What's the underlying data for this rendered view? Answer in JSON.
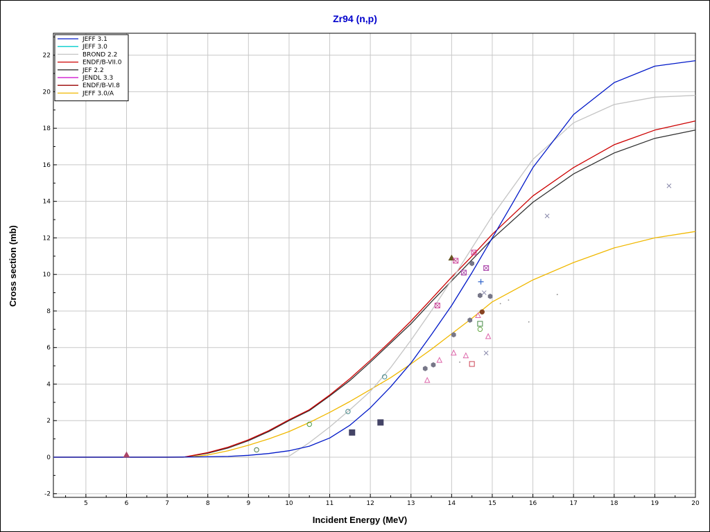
{
  "chart_data": {
    "type": "line",
    "title": "Zr94 (n,p)",
    "xlabel": "Incident Energy (MeV)",
    "ylabel": "Cross section (mb)",
    "xlim": [
      4.2,
      20
    ],
    "ylim": [
      -2.2,
      23.2
    ],
    "xticks": [
      5,
      6,
      7,
      8,
      9,
      10,
      11,
      12,
      13,
      14,
      15,
      16,
      17,
      18,
      19,
      20
    ],
    "yticks": [
      -2,
      0,
      2,
      4,
      6,
      8,
      10,
      12,
      14,
      16,
      18,
      20,
      22
    ],
    "grid": true,
    "legend_position": "top-left",
    "series": [
      {
        "name": "JEFF 3.1",
        "color": "#0018c8",
        "x": [
          4.2,
          7.0,
          8.0,
          8.5,
          9.0,
          9.5,
          10.0,
          10.5,
          11.0,
          11.5,
          12.0,
          12.5,
          13.0,
          13.5,
          14.0,
          14.5,
          15.0,
          15.5,
          16.0,
          17.0,
          18.0,
          19.0,
          20.0
        ],
        "y": [
          0,
          0,
          0.02,
          0.04,
          0.1,
          0.2,
          0.35,
          0.6,
          1.05,
          1.75,
          2.7,
          3.85,
          5.15,
          6.7,
          8.3,
          10.1,
          12.0,
          13.9,
          15.85,
          18.75,
          20.5,
          21.4,
          21.7
        ]
      },
      {
        "name": "JEFF 3.0",
        "color": "#00cccc",
        "x": [],
        "y": []
      },
      {
        "name": "BROND 2.2",
        "color": "#c4c4c4",
        "x": [
          4.2,
          9.5,
          10.0,
          10.5,
          11.0,
          11.5,
          12.0,
          12.5,
          13.0,
          13.5,
          14.0,
          14.5,
          15.0,
          16.0,
          17.0,
          18.0,
          19.0,
          20.0
        ],
        "y": [
          0,
          0,
          0.05,
          0.8,
          1.65,
          2.6,
          3.6,
          4.9,
          6.4,
          8.0,
          9.7,
          11.45,
          13.2,
          16.3,
          18.3,
          19.3,
          19.7,
          19.8
        ]
      },
      {
        "name": "ENDF/B-VII.0",
        "color": "#cc0000",
        "x": [
          4.2,
          7.4,
          8.0,
          8.5,
          9.0,
          9.5,
          10.0,
          10.5,
          11.0,
          11.5,
          12.0,
          12.5,
          13.0,
          13.5,
          14.0,
          14.5,
          15.0,
          16.0,
          17.0,
          18.0,
          19.0,
          20.0
        ],
        "y": [
          0,
          0,
          0.25,
          0.55,
          0.95,
          1.45,
          2.05,
          2.6,
          3.4,
          4.3,
          5.3,
          6.35,
          7.45,
          8.65,
          9.85,
          11.0,
          12.2,
          14.3,
          15.85,
          17.1,
          17.9,
          18.4
        ]
      },
      {
        "name": "JEF 2.2",
        "color": "#303030",
        "x": [
          4.2,
          7.4,
          8.0,
          8.5,
          9.0,
          9.5,
          10.0,
          10.5,
          11.0,
          11.5,
          12.0,
          12.5,
          13.0,
          13.5,
          14.0,
          14.5,
          15.0,
          16.0,
          17.0,
          18.0,
          19.0,
          20.0
        ],
        "y": [
          0,
          0,
          0.22,
          0.5,
          0.9,
          1.4,
          2.0,
          2.55,
          3.35,
          4.2,
          5.2,
          6.25,
          7.3,
          8.5,
          9.65,
          10.8,
          11.95,
          13.95,
          15.5,
          16.65,
          17.45,
          17.9
        ]
      },
      {
        "name": "JENDL 3.3",
        "color": "#cc00cc",
        "x": [],
        "y": []
      },
      {
        "name": "ENDF/B-VI.8",
        "color": "#990000",
        "x": [],
        "y": []
      },
      {
        "name": "JEFF 3.0/A",
        "color": "#f0b800",
        "x": [
          4.2,
          7.5,
          8.0,
          8.5,
          9.0,
          9.5,
          10.0,
          10.5,
          11.0,
          11.5,
          12.0,
          12.5,
          13.0,
          13.5,
          14.0,
          14.5,
          15.0,
          16.0,
          17.0,
          18.0,
          19.0,
          20.0
        ],
        "y": [
          0,
          0,
          0.12,
          0.35,
          0.65,
          1.0,
          1.4,
          1.9,
          2.45,
          3.05,
          3.7,
          4.35,
          5.1,
          5.9,
          6.75,
          7.6,
          8.5,
          9.7,
          10.65,
          11.45,
          12.0,
          12.35
        ]
      }
    ],
    "experimental_points": [
      {
        "marker": "triangle-filled",
        "color": "#aa4466",
        "x": 6.0,
        "y": 0.12
      },
      {
        "marker": "circle-open",
        "color": "#447744",
        "x": 9.2,
        "y": 0.4
      },
      {
        "marker": "circle-open",
        "color": "#449944",
        "x": 10.5,
        "y": 1.8
      },
      {
        "marker": "circle-open",
        "color": "#448888",
        "x": 11.45,
        "y": 2.5
      },
      {
        "marker": "circle-open",
        "color": "#448888",
        "x": 12.35,
        "y": 4.4
      },
      {
        "marker": "square-filled",
        "color": "#444466",
        "x": 11.55,
        "y": 1.35
      },
      {
        "marker": "square-filled",
        "color": "#444466",
        "x": 12.25,
        "y": 1.9
      },
      {
        "marker": "triangle-open",
        "color": "#dd66aa",
        "x": 13.4,
        "y": 4.2
      },
      {
        "marker": "triangle-open",
        "color": "#dd66aa",
        "x": 13.7,
        "y": 5.3
      },
      {
        "marker": "triangle-open",
        "color": "#dd66aa",
        "x": 14.05,
        "y": 5.7
      },
      {
        "marker": "triangle-open",
        "color": "#dd66aa",
        "x": 14.35,
        "y": 5.55
      },
      {
        "marker": "triangle-open",
        "color": "#dd66aa",
        "x": 14.65,
        "y": 7.75
      },
      {
        "marker": "triangle-open",
        "color": "#dd66aa",
        "x": 14.9,
        "y": 6.6
      },
      {
        "marker": "hexagon-filled",
        "color": "#777788",
        "x": 13.35,
        "y": 4.85
      },
      {
        "marker": "hexagon-filled",
        "color": "#777788",
        "x": 13.55,
        "y": 5.05
      },
      {
        "marker": "hexagon-filled",
        "color": "#777788",
        "x": 14.05,
        "y": 6.7
      },
      {
        "marker": "hexagon-filled",
        "color": "#777788",
        "x": 14.45,
        "y": 7.5
      },
      {
        "marker": "hexagon-filled",
        "color": "#777788",
        "x": 14.7,
        "y": 8.85
      },
      {
        "marker": "hexagon-filled",
        "color": "#777788",
        "x": 14.95,
        "y": 8.8
      },
      {
        "marker": "hexagon-filled",
        "color": "#777788",
        "x": 14.5,
        "y": 10.6
      },
      {
        "marker": "circle-filled",
        "color": "#884422",
        "x": 14.75,
        "y": 7.95
      },
      {
        "marker": "triangle-filled",
        "color": "#665522",
        "x": 14.0,
        "y": 10.9
      },
      {
        "marker": "square-cross",
        "color": "#cc4499",
        "x": 13.65,
        "y": 8.3
      },
      {
        "marker": "square-cross",
        "color": "#cc4499",
        "x": 14.1,
        "y": 10.75
      },
      {
        "marker": "square-cross",
        "color": "#aa44aa",
        "x": 14.3,
        "y": 10.1
      },
      {
        "marker": "square-cross",
        "color": "#cc4499",
        "x": 14.55,
        "y": 11.2
      },
      {
        "marker": "square-cross",
        "color": "#aa44aa",
        "x": 14.85,
        "y": 10.35
      },
      {
        "marker": "square-open",
        "color": "#cc4455",
        "x": 14.5,
        "y": 5.1
      },
      {
        "marker": "square-open",
        "color": "#448844",
        "x": 14.7,
        "y": 7.3
      },
      {
        "marker": "circle-open",
        "color": "#66aa44",
        "x": 14.7,
        "y": 7.0
      },
      {
        "marker": "plus",
        "color": "#3366cc",
        "x": 14.72,
        "y": 9.6
      },
      {
        "marker": "cross",
        "color": "#8888aa",
        "x": 14.8,
        "y": 9.0
      },
      {
        "marker": "cross",
        "color": "#8888aa",
        "x": 14.85,
        "y": 5.7
      },
      {
        "marker": "cross",
        "color": "#8888aa",
        "x": 16.35,
        "y": 13.2
      },
      {
        "marker": "cross",
        "color": "#8888aa",
        "x": 19.35,
        "y": 14.85
      },
      {
        "marker": "dot",
        "color": "#888888",
        "x": 15.2,
        "y": 8.4
      },
      {
        "marker": "dot",
        "color": "#888888",
        "x": 15.4,
        "y": 8.6
      },
      {
        "marker": "dot",
        "color": "#888888",
        "x": 15.9,
        "y": 7.4
      },
      {
        "marker": "dot",
        "color": "#888888",
        "x": 16.6,
        "y": 8.9
      },
      {
        "marker": "dot",
        "color": "#888888",
        "x": 14.2,
        "y": 5.2
      }
    ]
  }
}
